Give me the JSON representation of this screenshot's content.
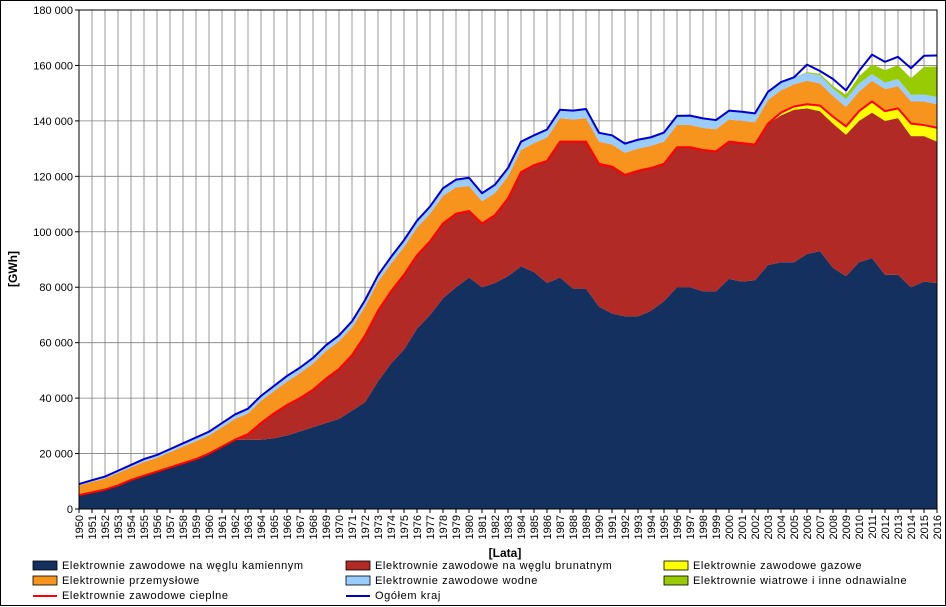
{
  "chart_data": {
    "type": "area",
    "title": "",
    "xlabel": "[Lata]",
    "ylabel": "[GWh]",
    "ylim": [
      0,
      180000
    ],
    "yticks": [
      0,
      20000,
      40000,
      60000,
      80000,
      100000,
      120000,
      140000,
      160000,
      180000
    ],
    "ytick_labels": [
      "0",
      "20 000",
      "40 000",
      "60 000",
      "80 000",
      "100 000",
      "120 000",
      "140 000",
      "160 000",
      "180 000"
    ],
    "x": [
      1950,
      1951,
      1952,
      1953,
      1954,
      1955,
      1956,
      1957,
      1958,
      1959,
      1960,
      1961,
      1962,
      1963,
      1964,
      1965,
      1966,
      1967,
      1968,
      1969,
      1970,
      1971,
      1972,
      1973,
      1974,
      1975,
      1976,
      1977,
      1978,
      1979,
      1980,
      1981,
      1982,
      1983,
      1984,
      1985,
      1986,
      1987,
      1988,
      1989,
      1990,
      1991,
      1992,
      1993,
      1994,
      1995,
      1996,
      1997,
      1998,
      1999,
      2000,
      2001,
      2002,
      2003,
      2004,
      2005,
      2006,
      2007,
      2008,
      2009,
      2010,
      2011,
      2012,
      2013,
      2014,
      2015,
      2016
    ],
    "grid": true,
    "legend_position": "bottom",
    "series": [
      {
        "name": "Elektrownie zawodowe na węglu kamiennym",
        "kind": "area",
        "color": "#14305e",
        "values": [
          5000,
          6000,
          7000,
          8500,
          10500,
          12000,
          13500,
          15000,
          16500,
          18000,
          20000,
          22500,
          25000,
          25000,
          25000,
          25500,
          26500,
          28000,
          29500,
          31000,
          32500,
          35500,
          38500,
          46000,
          52500,
          57500,
          65000,
          70000,
          76000,
          80000,
          83500,
          80000,
          81500,
          84000,
          87500,
          85500,
          81500,
          83500,
          79500,
          79500,
          73000,
          70500,
          69500,
          69500,
          71500,
          75000,
          80000,
          80000,
          78500,
          78500,
          83000,
          82000,
          82500,
          88000,
          89000,
          89000,
          92000,
          93000,
          87000,
          84000,
          89000,
          90500,
          84500,
          84500,
          80000,
          82000,
          81500
        ]
      },
      {
        "name": "Elektrownie zawodowe na węglu brunatnym",
        "kind": "area",
        "color": "#b22a25",
        "values": [
          0,
          0,
          0,
          0,
          0,
          0,
          0,
          0,
          0,
          0,
          0,
          0,
          0,
          2000,
          6000,
          9000,
          11000,
          12000,
          13500,
          16000,
          18000,
          20000,
          24000,
          25500,
          26000,
          27000,
          26500,
          26500,
          27000,
          26500,
          24000,
          23000,
          24500,
          28000,
          34000,
          38500,
          44000,
          49000,
          53000,
          53000,
          51500,
          53000,
          51000,
          52500,
          51500,
          49500,
          50500,
          50500,
          51000,
          50500,
          49500,
          50000,
          49000,
          51000,
          53000,
          55000,
          52500,
          50500,
          52000,
          51000,
          51000,
          52500,
          55500,
          56500,
          54500,
          52500,
          51000
        ]
      },
      {
        "name": "Elektrownie zawodowe gazowe",
        "kind": "area",
        "color": "#ffff00",
        "values": [
          0,
          0,
          0,
          0,
          0,
          0,
          0,
          0,
          0,
          0,
          0,
          0,
          0,
          0,
          0,
          0,
          0,
          0,
          0,
          0,
          0,
          0,
          0,
          0,
          0,
          0,
          0,
          0,
          0,
          0,
          0,
          0,
          0,
          0,
          0,
          0,
          0,
          0,
          0,
          0,
          0,
          0,
          0,
          0,
          0,
          0,
          0,
          0,
          0,
          0,
          0,
          0,
          0,
          500,
          1000,
          1200,
          1500,
          2000,
          2500,
          3000,
          3500,
          4000,
          3500,
          3500,
          4500,
          4500,
          5000
        ]
      },
      {
        "name": "Elektrownie przemysłowe",
        "kind": "area",
        "color": "#f7941d",
        "values": [
          3500,
          3800,
          4000,
          4500,
          4500,
          5000,
          5000,
          5500,
          6000,
          6500,
          6500,
          7000,
          7500,
          7500,
          8000,
          8000,
          8500,
          9000,
          9500,
          10000,
          10000,
          10000,
          10500,
          10500,
          10000,
          10000,
          10000,
          10000,
          10000,
          9500,
          9000,
          8000,
          8000,
          8000,
          8000,
          8000,
          8500,
          8500,
          8000,
          8500,
          8000,
          8000,
          8000,
          8000,
          8000,
          8000,
          8000,
          8000,
          8000,
          8000,
          8000,
          8000,
          8000,
          8000,
          8000,
          8000,
          8500,
          8000,
          7500,
          7000,
          7000,
          7500,
          8000,
          8000,
          8000,
          8000,
          8500
        ]
      },
      {
        "name": "Elektrownie zawodowe wodne",
        "kind": "area",
        "color": "#99ccff",
        "values": [
          500,
          600,
          700,
          800,
          900,
          1000,
          1000,
          1100,
          1200,
          1300,
          1400,
          1500,
          1600,
          1700,
          1800,
          1900,
          2000,
          2000,
          2000,
          2100,
          2100,
          2200,
          2300,
          2300,
          2400,
          2500,
          2500,
          2600,
          2700,
          2800,
          3000,
          2900,
          3000,
          3000,
          3000,
          2800,
          2900,
          3000,
          3200,
          3300,
          3200,
          3300,
          3300,
          3200,
          3100,
          3300,
          3300,
          3400,
          3400,
          3300,
          3200,
          3300,
          3200,
          3000,
          2500,
          2500,
          2800,
          2900,
          2700,
          2900,
          3000,
          2400,
          2300,
          2600,
          2400,
          2500,
          2600
        ]
      },
      {
        "name": "Elektrownie wiatrowe i inne odnawialne",
        "kind": "area",
        "color": "#99cc00",
        "values": [
          0,
          0,
          0,
          0,
          0,
          0,
          0,
          0,
          0,
          0,
          0,
          0,
          0,
          0,
          0,
          0,
          0,
          0,
          0,
          0,
          0,
          0,
          0,
          0,
          0,
          0,
          0,
          0,
          0,
          0,
          0,
          0,
          0,
          0,
          0,
          0,
          0,
          0,
          0,
          0,
          0,
          0,
          0,
          0,
          0,
          0,
          0,
          0,
          0,
          0,
          0,
          0,
          0,
          0,
          0,
          0,
          300,
          600,
          900,
          1500,
          2500,
          3500,
          4500,
          5000,
          6000,
          10000,
          11000
        ]
      },
      {
        "name": "Elektrownie zawodowe cieplne",
        "kind": "line",
        "color": "#ff0000",
        "values": [
          5000,
          6000,
          7000,
          8500,
          10500,
          12000,
          13500,
          15000,
          16500,
          18000,
          20000,
          22500,
          25000,
          27000,
          31000,
          34500,
          37500,
          40000,
          43000,
          47000,
          50500,
          55500,
          62500,
          71500,
          78500,
          84500,
          91500,
          96500,
          103000,
          106500,
          107500,
          103000,
          106000,
          112000,
          121500,
          124000,
          125500,
          132500,
          132500,
          132500,
          124500,
          123500,
          120500,
          122000,
          123000,
          124500,
          130500,
          130500,
          129500,
          129000,
          132500,
          132000,
          131500,
          139000,
          143000,
          145200,
          146000,
          145500,
          141500,
          138000,
          143500,
          147000,
          143500,
          144500,
          139000,
          138500,
          137500
        ]
      },
      {
        "name": "Ogółem kraj",
        "kind": "line",
        "color": "#0000cc",
        "values": [
          9000,
          10400,
          11700,
          13800,
          15900,
          18000,
          19500,
          21600,
          23700,
          25800,
          27900,
          31000,
          34100,
          36200,
          40800,
          44400,
          48000,
          51000,
          54500,
          59100,
          62600,
          67700,
          75300,
          84300,
          90900,
          97000,
          104000,
          109100,
          115700,
          118800,
          119500,
          113900,
          117000,
          123000,
          132500,
          134800,
          136900,
          144000,
          143700,
          144300,
          135700,
          134800,
          131800,
          133200,
          134100,
          135800,
          141800,
          141900,
          140900,
          140300,
          143700,
          143300,
          142700,
          150500,
          154000,
          155700,
          160300,
          158000,
          155100,
          151000,
          158000,
          163900,
          161300,
          163100,
          159000,
          163500,
          163600
        ]
      }
    ]
  },
  "axis": {
    "xlabel": "[Lata]",
    "ylabel": "[GWh]"
  }
}
